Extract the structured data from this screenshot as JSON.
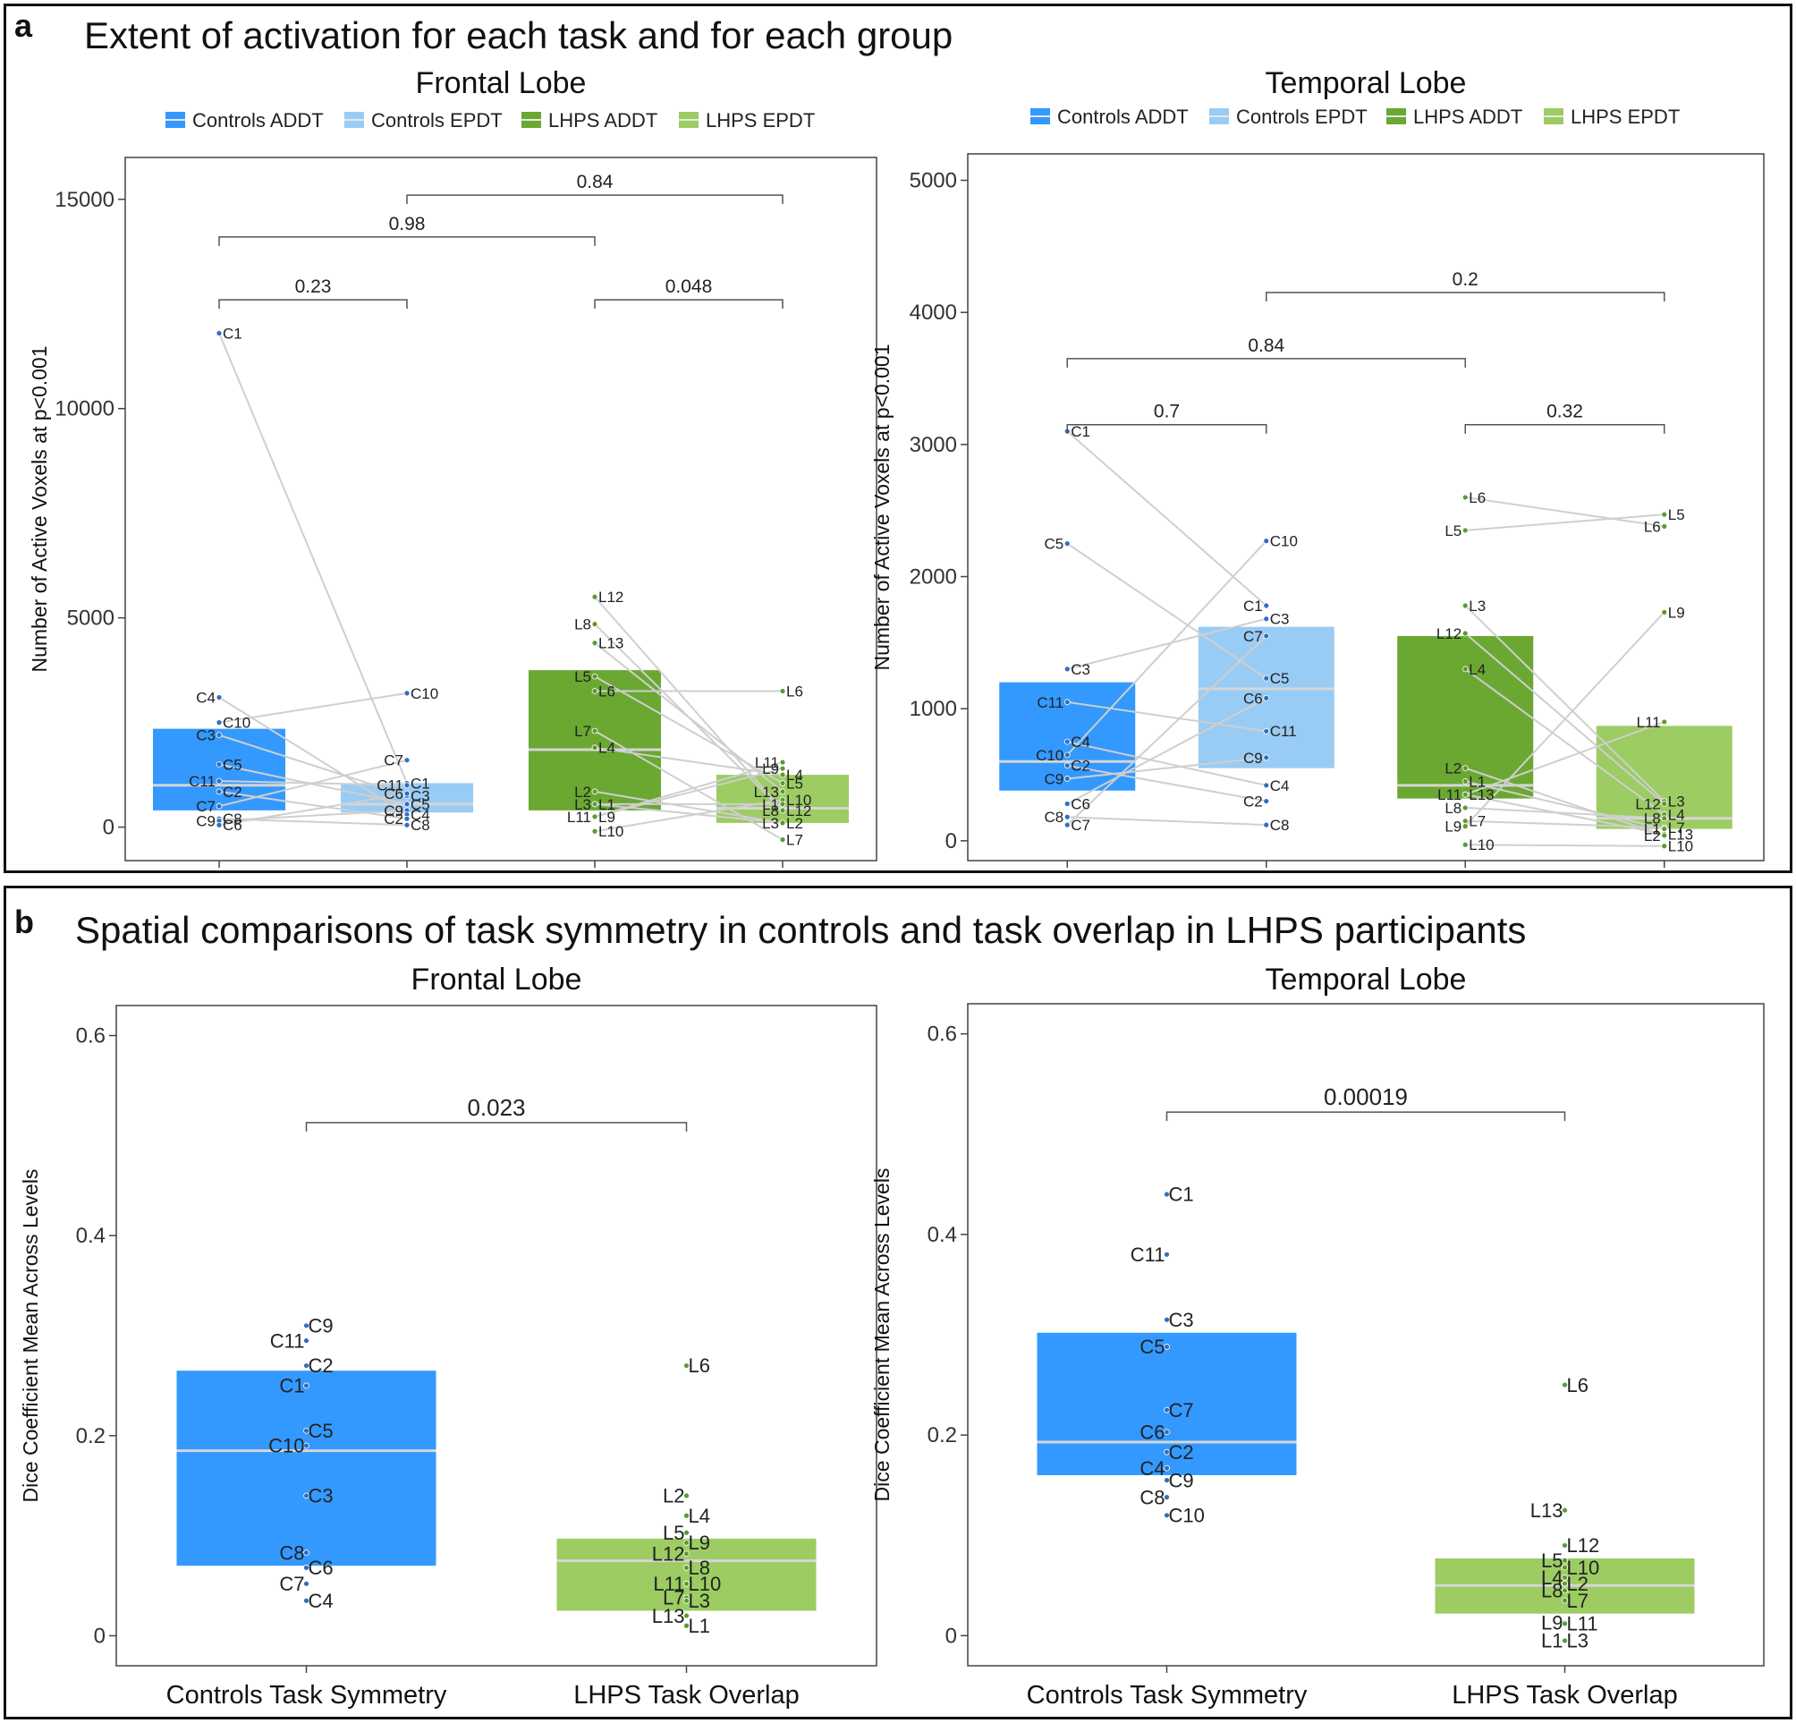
{
  "panel_a": {
    "letter": "a",
    "title": "Extent of activation for each task and for each group"
  },
  "panel_b": {
    "letter": "b",
    "title": "Spatial comparisons of task symmetry in controls and task overlap in LHPS participants"
  },
  "colors": {
    "controls_addt": "#3399ff",
    "controls_epdt": "#99ccf5",
    "lhps_addt": "#6aa832",
    "lhps_epdt": "#9ccc62",
    "median": "#d6d6d6",
    "pair_line": "#cfcfcf",
    "bracket": "#555555"
  },
  "chart_data": [
    {
      "id": "a_frontal",
      "type": "box",
      "title": "Frontal Lobe",
      "ylabel": "Number of Active Voxels at p<0.001",
      "ylim": [
        -800,
        16000
      ],
      "yticks": [
        0,
        5000,
        10000,
        15000
      ],
      "legend": [
        {
          "label": "Controls ADDT",
          "color": "#3399ff"
        },
        {
          "label": "Controls EPDT",
          "color": "#99ccf5"
        },
        {
          "label": "LHPS ADDT",
          "color": "#6aa832"
        },
        {
          "label": "LHPS EPDT",
          "color": "#9ccc62"
        }
      ],
      "boxes": [
        {
          "group": "Controls ADDT",
          "q1": 400,
          "median": 1000,
          "q3": 2350,
          "color": "#3399ff"
        },
        {
          "group": "Controls EPDT",
          "q1": 350,
          "median": 550,
          "q3": 1050,
          "color": "#99ccf5"
        },
        {
          "group": "LHPS ADDT",
          "q1": 400,
          "median": 1850,
          "q3": 3750,
          "color": "#6aa832"
        },
        {
          "group": "LHPS EPDT",
          "q1": 100,
          "median": 450,
          "q3": 1250,
          "color": "#9ccc62"
        }
      ],
      "points": [
        [
          {
            "label": "C1",
            "value": 11800
          },
          {
            "label": "C4",
            "value": 3100
          },
          {
            "label": "C10",
            "value": 2500
          },
          {
            "label": "C3",
            "value": 2200
          },
          {
            "label": "C5",
            "value": 1500
          },
          {
            "label": "C11",
            "value": 1100
          },
          {
            "label": "C2",
            "value": 850
          },
          {
            "label": "C7",
            "value": 500
          },
          {
            "label": "C8",
            "value": 200
          },
          {
            "label": "C9",
            "value": 150
          },
          {
            "label": "C6",
            "value": 50
          }
        ],
        [
          {
            "label": "C10",
            "value": 3200
          },
          {
            "label": "C7",
            "value": 1600
          },
          {
            "label": "C1",
            "value": 1050
          },
          {
            "label": "C11",
            "value": 1000
          },
          {
            "label": "C3",
            "value": 750
          },
          {
            "label": "C6",
            "value": 800
          },
          {
            "label": "C5",
            "value": 550
          },
          {
            "label": "C9",
            "value": 400
          },
          {
            "label": "C4",
            "value": 300
          },
          {
            "label": "C2",
            "value": 200
          },
          {
            "label": "C8",
            "value": 50
          }
        ],
        [
          {
            "label": "L12",
            "value": 5500
          },
          {
            "label": "L8",
            "value": 4850
          },
          {
            "label": "L13",
            "value": 4400
          },
          {
            "label": "L5",
            "value": 3600
          },
          {
            "label": "L6",
            "value": 3250
          },
          {
            "label": "L7",
            "value": 2300
          },
          {
            "label": "L4",
            "value": 1900
          },
          {
            "label": "L2",
            "value": 850
          },
          {
            "label": "L1",
            "value": 550
          },
          {
            "label": "L3",
            "value": 550
          },
          {
            "label": "L9",
            "value": 250
          },
          {
            "label": "L11",
            "value": 250
          },
          {
            "label": "L10",
            "value": -100
          }
        ],
        [
          {
            "label": "L6",
            "value": 3250
          },
          {
            "label": "L11",
            "value": 1550
          },
          {
            "label": "L4",
            "value": 1250
          },
          {
            "label": "L9",
            "value": 1400
          },
          {
            "label": "L5",
            "value": 1050
          },
          {
            "label": "L13",
            "value": 850
          },
          {
            "label": "L10",
            "value": 650
          },
          {
            "label": "L1",
            "value": 550
          },
          {
            "label": "L12",
            "value": 400
          },
          {
            "label": "L8",
            "value": 400
          },
          {
            "label": "L2",
            "value": 100
          },
          {
            "label": "L3",
            "value": 100
          },
          {
            "label": "L7",
            "value": -300
          }
        ]
      ],
      "pair_lines": true,
      "brackets": [
        {
          "from": 0,
          "to": 1,
          "y": 12600,
          "label": "0.23"
        },
        {
          "from": 2,
          "to": 3,
          "y": 12600,
          "label": "0.048"
        },
        {
          "from": 0,
          "to": 2,
          "y": 14100,
          "label": "0.98"
        },
        {
          "from": 1,
          "to": 3,
          "y": 15100,
          "label": "0.84"
        }
      ]
    },
    {
      "id": "a_temporal",
      "type": "box",
      "title": "Temporal Lobe",
      "ylabel": "Number of Active Voxels at p<0.001",
      "ylim": [
        -150,
        5200
      ],
      "yticks": [
        0,
        1000,
        2000,
        3000,
        4000,
        5000
      ],
      "legend": [
        {
          "label": "Controls ADDT",
          "color": "#3399ff"
        },
        {
          "label": "Controls EPDT",
          "color": "#99ccf5"
        },
        {
          "label": "LHPS ADDT",
          "color": "#6aa832"
        },
        {
          "label": "LHPS EPDT",
          "color": "#9ccc62"
        }
      ],
      "boxes": [
        {
          "group": "Controls ADDT",
          "q1": 380,
          "median": 600,
          "q3": 1200,
          "color": "#3399ff"
        },
        {
          "group": "Controls EPDT",
          "q1": 550,
          "median": 1150,
          "q3": 1620,
          "color": "#99ccf5"
        },
        {
          "group": "LHPS ADDT",
          "q1": 320,
          "median": 420,
          "q3": 1550,
          "color": "#6aa832"
        },
        {
          "group": "LHPS EPDT",
          "q1": 90,
          "median": 170,
          "q3": 870,
          "color": "#9ccc62"
        }
      ],
      "points": [
        [
          {
            "label": "C1",
            "value": 3100
          },
          {
            "label": "C5",
            "value": 2250
          },
          {
            "label": "C3",
            "value": 1300
          },
          {
            "label": "C11",
            "value": 1050
          },
          {
            "label": "C4",
            "value": 750
          },
          {
            "label": "C10",
            "value": 650
          },
          {
            "label": "C2",
            "value": 570
          },
          {
            "label": "C9",
            "value": 470
          },
          {
            "label": "C6",
            "value": 280
          },
          {
            "label": "C8",
            "value": 180
          },
          {
            "label": "C7",
            "value": 120
          }
        ],
        [
          {
            "label": "C10",
            "value": 2270
          },
          {
            "label": "C1",
            "value": 1780
          },
          {
            "label": "C3",
            "value": 1680
          },
          {
            "label": "C7",
            "value": 1550
          },
          {
            "label": "C5",
            "value": 1230
          },
          {
            "label": "C6",
            "value": 1080
          },
          {
            "label": "C11",
            "value": 830
          },
          {
            "label": "C9",
            "value": 630
          },
          {
            "label": "C4",
            "value": 420
          },
          {
            "label": "C2",
            "value": 300
          },
          {
            "label": "C8",
            "value": 120
          }
        ],
        [
          {
            "label": "L6",
            "value": 2600
          },
          {
            "label": "L5",
            "value": 2350
          },
          {
            "label": "L3",
            "value": 1780
          },
          {
            "label": "L12",
            "value": 1570
          },
          {
            "label": "L4",
            "value": 1300
          },
          {
            "label": "L2",
            "value": 550
          },
          {
            "label": "L1",
            "value": 450
          },
          {
            "label": "L11",
            "value": 350
          },
          {
            "label": "L13",
            "value": 350
          },
          {
            "label": "L8",
            "value": 250
          },
          {
            "label": "L7",
            "value": 150
          },
          {
            "label": "L9",
            "value": 110
          },
          {
            "label": "L10",
            "value": -30
          }
        ],
        [
          {
            "label": "L5",
            "value": 2470
          },
          {
            "label": "L6",
            "value": 2380
          },
          {
            "label": "L9",
            "value": 1730
          },
          {
            "label": "L11",
            "value": 900
          },
          {
            "label": "L3",
            "value": 300
          },
          {
            "label": "L12",
            "value": 280
          },
          {
            "label": "L4",
            "value": 200
          },
          {
            "label": "L8",
            "value": 170
          },
          {
            "label": "L7",
            "value": 100
          },
          {
            "label": "L1",
            "value": 90
          },
          {
            "label": "L13",
            "value": 50
          },
          {
            "label": "L2",
            "value": 40
          },
          {
            "label": "L10",
            "value": -40
          }
        ]
      ],
      "pair_lines": true,
      "brackets": [
        {
          "from": 0,
          "to": 1,
          "y": 3150,
          "label": "0.7"
        },
        {
          "from": 2,
          "to": 3,
          "y": 3150,
          "label": "0.32"
        },
        {
          "from": 0,
          "to": 2,
          "y": 3650,
          "label": "0.84"
        },
        {
          "from": 1,
          "to": 3,
          "y": 4150,
          "label": "0.2"
        }
      ]
    },
    {
      "id": "b_frontal",
      "type": "box",
      "title": "Frontal Lobe",
      "ylabel": "Dice Coefficient Mean Across Levels",
      "categories": [
        "Controls Task Symmetry",
        "LHPS Task Overlap"
      ],
      "ylim": [
        -0.03,
        0.63
      ],
      "yticks": [
        0.0,
        0.2,
        0.4,
        0.6
      ],
      "boxes": [
        {
          "group": "Controls Task Symmetry",
          "q1": 0.07,
          "median": 0.185,
          "q3": 0.265,
          "color": "#3399ff"
        },
        {
          "group": "LHPS Task Overlap",
          "q1": 0.025,
          "median": 0.075,
          "q3": 0.097,
          "color": "#9ccc62"
        }
      ],
      "points": [
        [
          {
            "label": "C9",
            "value": 0.31
          },
          {
            "label": "C11",
            "value": 0.295
          },
          {
            "label": "C2",
            "value": 0.27
          },
          {
            "label": "C1",
            "value": 0.25
          },
          {
            "label": "C5",
            "value": 0.205
          },
          {
            "label": "C10",
            "value": 0.19
          },
          {
            "label": "C3",
            "value": 0.14
          },
          {
            "label": "C8",
            "value": 0.083
          },
          {
            "label": "C6",
            "value": 0.068
          },
          {
            "label": "C7",
            "value": 0.052
          },
          {
            "label": "C4",
            "value": 0.035
          }
        ],
        [
          {
            "label": "L6",
            "value": 0.27
          },
          {
            "label": "L2",
            "value": 0.14
          },
          {
            "label": "L4",
            "value": 0.12
          },
          {
            "label": "L5",
            "value": 0.103
          },
          {
            "label": "L9",
            "value": 0.093
          },
          {
            "label": "L12",
            "value": 0.082
          },
          {
            "label": "L8",
            "value": 0.068
          },
          {
            "label": "L11",
            "value": 0.052
          },
          {
            "label": "L10",
            "value": 0.052
          },
          {
            "label": "L7",
            "value": 0.038
          },
          {
            "label": "L3",
            "value": 0.035
          },
          {
            "label": "L13",
            "value": 0.02
          },
          {
            "label": "L1",
            "value": 0.01
          }
        ]
      ],
      "pair_lines": false,
      "brackets": [
        {
          "from": 0,
          "to": 1,
          "y": 0.513,
          "label": "0.023"
        }
      ]
    },
    {
      "id": "b_temporal",
      "type": "box",
      "title": "Temporal Lobe",
      "ylabel": "Dice Coefficient Mean Across Levels",
      "categories": [
        "Controls Task Symmetry",
        "LHPS Task Overlap"
      ],
      "ylim": [
        -0.03,
        0.63
      ],
      "yticks": [
        0.0,
        0.2,
        0.4,
        0.6
      ],
      "boxes": [
        {
          "group": "Controls Task Symmetry",
          "q1": 0.16,
          "median": 0.193,
          "q3": 0.302,
          "color": "#3399ff"
        },
        {
          "group": "LHPS Task Overlap",
          "q1": 0.022,
          "median": 0.05,
          "q3": 0.077,
          "color": "#9ccc62"
        }
      ],
      "points": [
        [
          {
            "label": "C1",
            "value": 0.44
          },
          {
            "label": "C11",
            "value": 0.38
          },
          {
            "label": "C3",
            "value": 0.315
          },
          {
            "label": "C5",
            "value": 0.288
          },
          {
            "label": "C7",
            "value": 0.225
          },
          {
            "label": "C6",
            "value": 0.203
          },
          {
            "label": "C2",
            "value": 0.183
          },
          {
            "label": "C4",
            "value": 0.167
          },
          {
            "label": "C9",
            "value": 0.155
          },
          {
            "label": "C8",
            "value": 0.138
          },
          {
            "label": "C10",
            "value": 0.12
          }
        ],
        [
          {
            "label": "L6",
            "value": 0.25
          },
          {
            "label": "L13",
            "value": 0.125
          },
          {
            "label": "L12",
            "value": 0.09
          },
          {
            "label": "L5",
            "value": 0.075
          },
          {
            "label": "L10",
            "value": 0.068
          },
          {
            "label": "L4",
            "value": 0.058
          },
          {
            "label": "L2",
            "value": 0.052
          },
          {
            "label": "L8",
            "value": 0.045
          },
          {
            "label": "L7",
            "value": 0.035
          },
          {
            "label": "L9",
            "value": 0.013
          },
          {
            "label": "L11",
            "value": 0.012
          },
          {
            "label": "L1",
            "value": -0.005
          },
          {
            "label": "L3",
            "value": -0.005
          }
        ]
      ],
      "pair_lines": false,
      "brackets": [
        {
          "from": 0,
          "to": 1,
          "y": 0.522,
          "label": "0.00019"
        }
      ]
    }
  ]
}
